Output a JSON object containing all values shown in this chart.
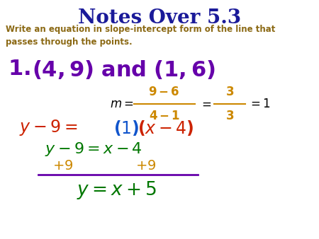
{
  "title": "Notes Over 5.3",
  "title_color": "#1a1a99",
  "subtitle_color": "#8B6914",
  "bg_color": "#ffffff",
  "purple": "#6600aa",
  "orange": "#cc8800",
  "green": "#007700",
  "red": "#cc2200",
  "blue": "#1155cc",
  "black": "#000000"
}
